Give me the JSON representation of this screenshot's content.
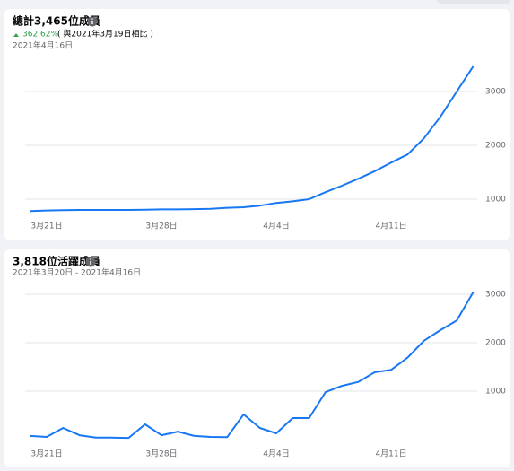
{
  "chart_data": [
    {
      "type": "line",
      "title": "總計3,465位成員",
      "change": "362.62%",
      "comparison": "( 與2021年3月19日相比 )",
      "subtitle": "2021年4月16日",
      "categories": [
        null,
        "3月21日",
        null,
        null,
        null,
        null,
        null,
        null,
        "3月28日",
        null,
        null,
        null,
        null,
        null,
        null,
        "4月4日",
        null,
        null,
        null,
        null,
        null,
        null,
        "4月11日",
        null,
        null,
        null,
        null,
        null
      ],
      "values": [
        780,
        790,
        795,
        800,
        800,
        800,
        800,
        805,
        810,
        810,
        815,
        820,
        840,
        850,
        880,
        930,
        960,
        1000,
        1130,
        1250,
        1380,
        1520,
        1680,
        1830,
        2130,
        2530,
        3000,
        3465
      ],
      "color": "#1877f2",
      "ylim": [
        700,
        3500
      ],
      "yticks": [
        1000,
        2000,
        3000
      ],
      "grid": true
    },
    {
      "type": "line",
      "title": "3,818位活躍成員",
      "subtitle": "2021年3月20日 - 2021年4月16日",
      "categories": [
        null,
        "3月21日",
        null,
        null,
        null,
        null,
        null,
        null,
        "3月28日",
        null,
        null,
        null,
        null,
        null,
        null,
        "4月4日",
        null,
        null,
        null,
        null,
        null,
        null,
        "4月11日",
        null,
        null,
        null,
        null,
        null
      ],
      "values": [
        75,
        55,
        240,
        90,
        40,
        40,
        35,
        315,
        90,
        165,
        75,
        55,
        50,
        520,
        240,
        130,
        445,
        445,
        980,
        1110,
        1190,
        1390,
        1440,
        1690,
        2040,
        2260,
        2460,
        3040
      ],
      "color": "#1877f2",
      "ylim": [
        0,
        3200
      ],
      "yticks": [
        1000,
        2000,
        3000
      ],
      "grid": true
    }
  ]
}
